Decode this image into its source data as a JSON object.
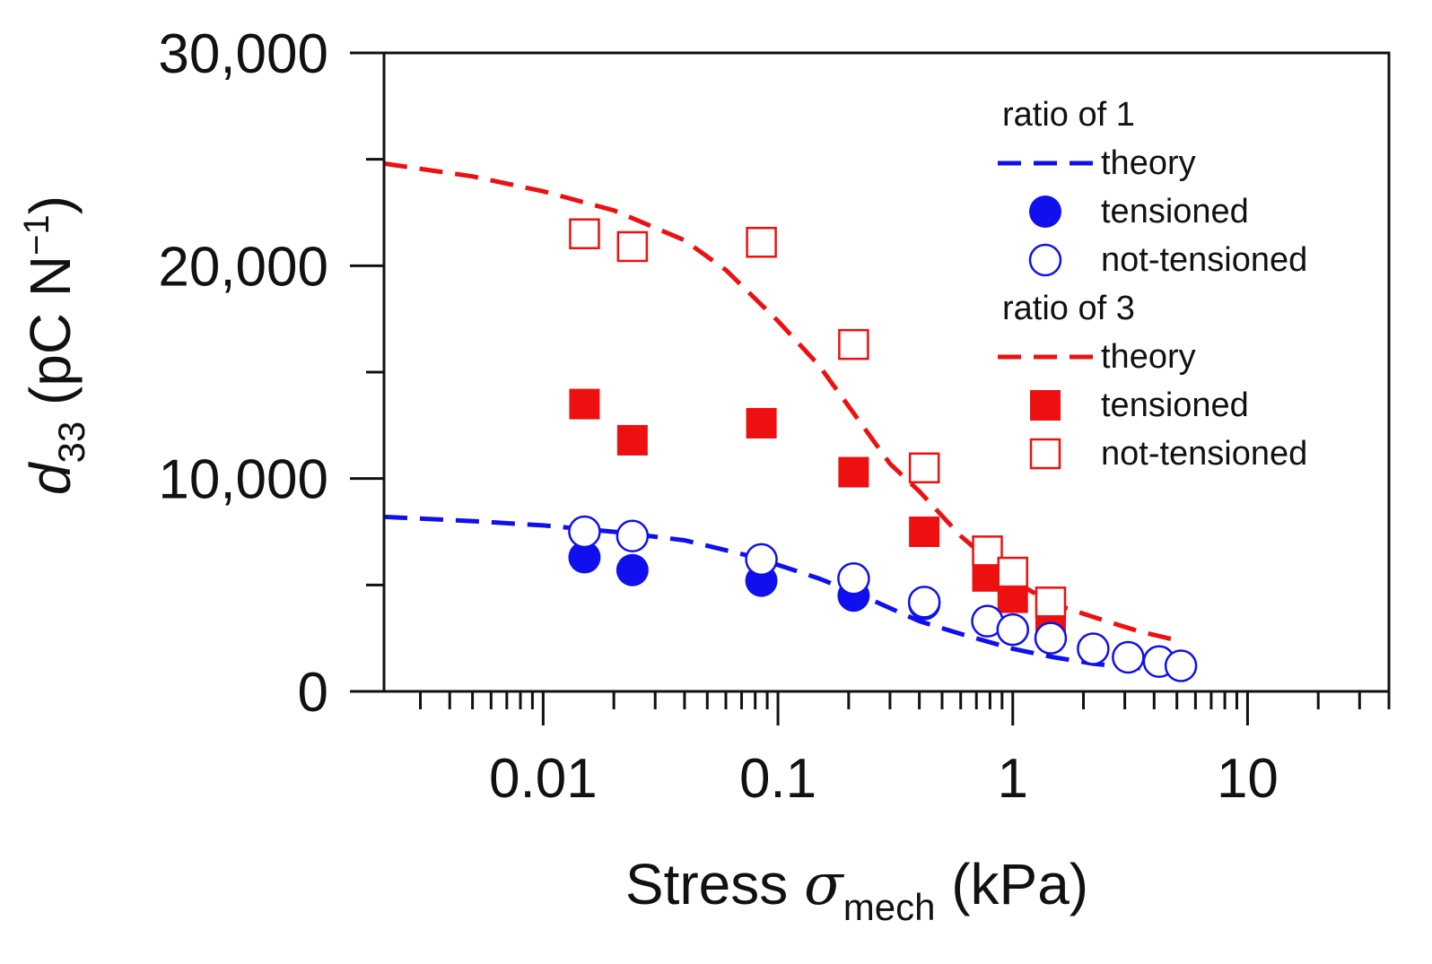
{
  "chart_data": {
    "type": "scatter",
    "x_scale": "log",
    "xlim": [
      0.0021,
      40
    ],
    "ylim": [
      0,
      30000
    ],
    "xlabel": {
      "main": "Stress ",
      "symbol": "σ",
      "sub": "mech",
      "unit": " (kPa)"
    },
    "ylabel": {
      "main": "d",
      "sub": "33",
      "unit": " (pC N",
      "sup": "−1",
      "close": ")"
    },
    "x_ticks": [
      {
        "value": 0.01,
        "label": "0.01"
      },
      {
        "value": 0.1,
        "label": "0.1"
      },
      {
        "value": 1,
        "label": "1"
      },
      {
        "value": 10,
        "label": "10"
      }
    ],
    "y_ticks": [
      {
        "value": 0,
        "label": "0"
      },
      {
        "value": 10000,
        "label": "10,000"
      },
      {
        "value": 20000,
        "label": "20,000"
      },
      {
        "value": 30000,
        "label": "30,000"
      }
    ],
    "y_minor_ticks": [
      5000,
      15000,
      25000
    ],
    "legend": {
      "groups": [
        {
          "title": "ratio of 1",
          "entries": [
            {
              "label": "theory",
              "series": "r1_theory"
            },
            {
              "label": "tensioned",
              "series": "r1_tensioned"
            },
            {
              "label": "not-tensioned",
              "series": "r1_not_tensioned"
            }
          ]
        },
        {
          "title": "ratio of 3",
          "entries": [
            {
              "label": "theory",
              "series": "r3_theory"
            },
            {
              "label": "tensioned",
              "series": "r3_tensioned"
            },
            {
              "label": "not-tensioned",
              "series": "r3_not_tensioned"
            }
          ]
        }
      ]
    },
    "series": [
      {
        "id": "r1_theory",
        "name": "ratio of 1 theory",
        "kind": "dashed-line",
        "color": "#1010ee",
        "x": [
          0.0021,
          0.005,
          0.01,
          0.02,
          0.04,
          0.08,
          0.15,
          0.25,
          0.4,
          0.6,
          1.0,
          1.5,
          2.2,
          3.0,
          4.0,
          5.0
        ],
        "y": [
          8200,
          8000,
          7800,
          7500,
          7100,
          6300,
          5300,
          4300,
          3300,
          2700,
          2000,
          1600,
          1300,
          1150,
          1050,
          1000
        ]
      },
      {
        "id": "r1_tensioned",
        "name": "ratio of 1 tensioned",
        "kind": "filled-circle",
        "color": "#1010ee",
        "x": [
          0.015,
          0.024,
          0.085,
          0.21,
          0.42
        ],
        "y": [
          6300,
          5700,
          5200,
          4500,
          4100
        ]
      },
      {
        "id": "r1_not_tensioned",
        "name": "ratio of 1 not-tensioned",
        "kind": "open-circle",
        "color": "#1010ee",
        "x": [
          0.015,
          0.024,
          0.085,
          0.21,
          0.42,
          0.78,
          1.0,
          1.45,
          2.2,
          3.1,
          4.2,
          5.2
        ],
        "y": [
          7500,
          7300,
          6200,
          5300,
          4200,
          3300,
          2900,
          2500,
          2000,
          1600,
          1400,
          1200
        ]
      },
      {
        "id": "r3_theory",
        "name": "ratio of 3 theory",
        "kind": "dashed-line",
        "color": "#ee1010",
        "x": [
          0.0021,
          0.005,
          0.01,
          0.02,
          0.04,
          0.06,
          0.1,
          0.15,
          0.2,
          0.3,
          0.4,
          0.6,
          1.0,
          1.5,
          2.5,
          3.5,
          5.0
        ],
        "y": [
          24800,
          24200,
          23500,
          22600,
          21200,
          19800,
          17400,
          15300,
          13400,
          10700,
          9400,
          7300,
          5200,
          4100,
          3300,
          2800,
          2400
        ]
      },
      {
        "id": "r3_tensioned",
        "name": "ratio of 3 tensioned",
        "kind": "filled-square",
        "color": "#ee1010",
        "x": [
          0.015,
          0.024,
          0.085,
          0.21,
          0.42,
          0.78,
          1.0,
          1.45
        ],
        "y": [
          13500,
          11800,
          12600,
          10300,
          7500,
          5400,
          4400,
          3300
        ]
      },
      {
        "id": "r3_not_tensioned",
        "name": "ratio of 3 not-tensioned",
        "kind": "open-square",
        "color": "#ee1010",
        "x": [
          0.015,
          0.024,
          0.085,
          0.21,
          0.42,
          0.78,
          1.0,
          1.45
        ],
        "y": [
          21500,
          20900,
          21100,
          16300,
          10500,
          6600,
          5600,
          4200
        ]
      }
    ]
  }
}
